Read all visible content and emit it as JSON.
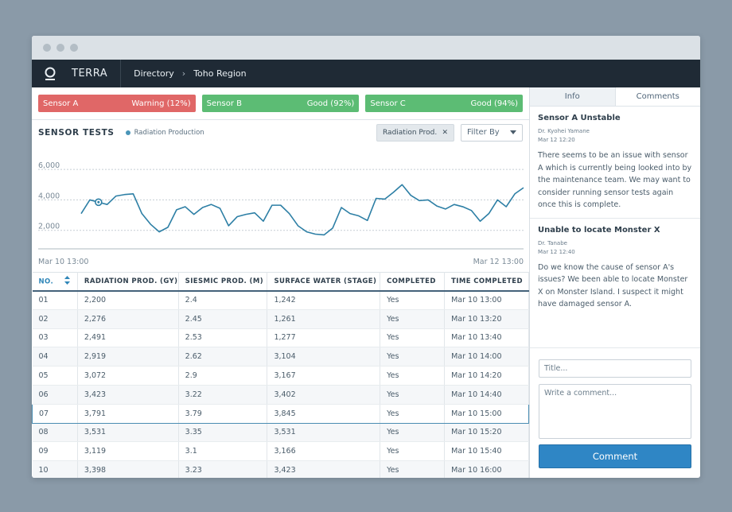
{
  "nav": {
    "brand": "TERRA",
    "crumb1": "Directory",
    "crumb2": "Toho Region"
  },
  "sensors": [
    {
      "name": "Sensor A",
      "status": "Warning (12%)"
    },
    {
      "name": "Sensor B",
      "status": "Good (92%)"
    },
    {
      "name": "Sensor C",
      "status": "Good (94%)"
    }
  ],
  "tests": {
    "title": "SENSOR TESTS",
    "legend": "Radiation Production",
    "chip": "Radiation Prod.",
    "filter": "Filter By"
  },
  "chart_data": {
    "type": "line",
    "series": [
      {
        "name": "Radiation Production",
        "values": [
          3100,
          4000,
          3850,
          3700,
          4250,
          4350,
          4400,
          3100,
          2400,
          1900,
          2200,
          3350,
          3550,
          3050,
          3500,
          3700,
          3450,
          2300,
          2900,
          3050,
          3150,
          2600,
          3650,
          3650,
          3100,
          2300,
          1900,
          1750,
          1700,
          2150,
          3500,
          3100,
          2950,
          2650,
          4100,
          4050,
          4500,
          5000,
          4300,
          3950,
          4000,
          3600,
          3400,
          3700,
          3550,
          3300,
          2600,
          3100,
          4000,
          3550,
          4400,
          4800
        ]
      }
    ],
    "x_start_label": "Mar 10 13:00",
    "x_end_label": "Mar 12 13:00",
    "y_ticks": [
      "6,000",
      "4,000",
      "2,000"
    ],
    "ylim": [
      0,
      7000
    ],
    "highlight_index": 2,
    "color": "#2d7fa5"
  },
  "table": {
    "headers": [
      "NO.",
      "RADIATION PROD. (GY)",
      "SIESMIC PROD. (M)",
      "SURFACE WATER (STAGE)",
      "COMPLETED",
      "TIME COMPLETED"
    ],
    "rows": [
      [
        "01",
        "2,200",
        "2.4",
        "1,242",
        "Yes",
        "Mar 10 13:00"
      ],
      [
        "02",
        "2,276",
        "2.45",
        "1,261",
        "Yes",
        "Mar 10 13:20"
      ],
      [
        "03",
        "2,491",
        "2.53",
        "1,277",
        "Yes",
        "Mar 10 13:40"
      ],
      [
        "04",
        "2,919",
        "2.62",
        "3,104",
        "Yes",
        "Mar 10 14:00"
      ],
      [
        "05",
        "3,072",
        "2.9",
        "3,167",
        "Yes",
        "Mar 10 14:20"
      ],
      [
        "06",
        "3,423",
        "3.22",
        "3,402",
        "Yes",
        "Mar 10 14:40"
      ],
      [
        "07",
        "3,791",
        "3.79",
        "3,845",
        "Yes",
        "Mar 10 15:00"
      ],
      [
        "08",
        "3,531",
        "3.35",
        "3,531",
        "Yes",
        "Mar 10 15:20"
      ],
      [
        "09",
        "3,119",
        "3.1",
        "3,166",
        "Yes",
        "Mar 10 15:40"
      ],
      [
        "10",
        "3,398",
        "3.23",
        "3,423",
        "Yes",
        "Mar 10 16:00"
      ]
    ],
    "selected_row": 6
  },
  "side": {
    "tab_info": "Info",
    "tab_comments": "Comments",
    "comments": [
      {
        "title": "Sensor A Unstable",
        "author": "Dr. Kyohei Yamane",
        "date": "Mar 12 12:20",
        "body": "There seems to be an issue with sensor A which is currently being looked into by the maintenance team. We may want to consider running sensor tests again once this is complete."
      },
      {
        "title": "Unable to locate Monster X",
        "author": "Dr. Tanabe",
        "date": "Mar 12 12:40",
        "body": "Do we know the cause of sensor A's issues? We been able to locate Monster X on Monster Island. I suspect it might have damaged sensor A."
      }
    ],
    "title_placeholder": "Title...",
    "comment_placeholder": "Write a comment...",
    "button": "Comment"
  }
}
